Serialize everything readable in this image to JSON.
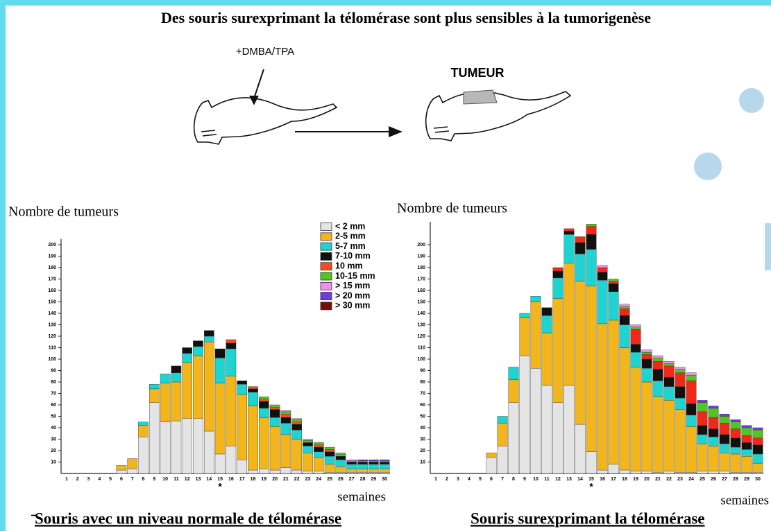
{
  "slide": {
    "title": "Des souris surexprimant la télomérase sont plus sensibles à la tumorigenèse",
    "treatment": "+DMBA/TPA",
    "tumor": "TUMEUR"
  },
  "chart_data": [
    {
      "type": "stacked_bar",
      "y_label": "Nombre de tumeurs",
      "x_label": "semaines",
      "caption": "Souris avec un niveau normale de télomérase",
      "annotation": {
        "text": "*",
        "category": "15"
      },
      "categories": [
        "1",
        "2",
        "3",
        "4",
        "5",
        "6",
        "7",
        "8",
        "9",
        "10",
        "11",
        "12",
        "13",
        "14",
        "15",
        "16",
        "17",
        "18",
        "19",
        "20",
        "21",
        "22",
        "23",
        "24",
        "25",
        "26",
        "27",
        "28",
        "29",
        "30"
      ],
      "ylim": [
        0,
        205
      ],
      "yticks": [
        10,
        20,
        30,
        40,
        50,
        60,
        70,
        80,
        90,
        100,
        110,
        120,
        130,
        140,
        150,
        160,
        170,
        180,
        190,
        200
      ],
      "legend": "top-right",
      "series": [
        {
          "name": "< 2 mm",
          "color": "#e4e4e4",
          "values": [
            0,
            0,
            0,
            0,
            0,
            3,
            4,
            32,
            62,
            45,
            46,
            48,
            48,
            37,
            17,
            24,
            12,
            3,
            4,
            3,
            5,
            3,
            2,
            2,
            1,
            1,
            1,
            1,
            1,
            1
          ]
        },
        {
          "name": "2-5 mm",
          "color": "#f2b51c",
          "values": [
            0,
            0,
            0,
            0,
            0,
            4,
            9,
            10,
            12,
            34,
            34,
            49,
            55,
            78,
            62,
            61,
            57,
            56,
            45,
            38,
            29,
            27,
            16,
            12,
            7,
            5,
            3,
            3,
            3,
            3
          ]
        },
        {
          "name": "5-7 mm",
          "color": "#1ed3d0",
          "values": [
            0,
            0,
            0,
            0,
            0,
            0,
            0,
            3,
            4,
            8,
            8,
            8,
            8,
            5,
            22,
            24,
            9,
            12,
            8,
            8,
            10,
            8,
            6,
            5,
            7,
            6,
            4,
            4,
            4,
            4
          ]
        },
        {
          "name": "7-10 mm",
          "color": "#111111",
          "values": [
            0,
            0,
            0,
            0,
            0,
            0,
            0,
            0,
            0,
            0,
            6,
            5,
            5,
            5,
            8,
            5,
            3,
            3,
            6,
            7,
            5,
            5,
            3,
            4,
            4,
            3,
            2,
            2,
            2,
            2
          ]
        },
        {
          "name": "10 mm",
          "color": "#f0501a",
          "values": [
            0,
            0,
            0,
            0,
            0,
            0,
            0,
            0,
            0,
            0,
            0,
            0,
            0,
            0,
            0,
            3,
            0,
            2,
            2,
            2,
            3,
            2,
            0,
            2,
            2,
            0,
            0,
            0,
            0,
            0
          ]
        },
        {
          "name": "10-15 mm",
          "color": "#52c424",
          "values": [
            0,
            0,
            0,
            0,
            0,
            0,
            0,
            0,
            0,
            0,
            0,
            0,
            0,
            0,
            0,
            0,
            0,
            0,
            2,
            2,
            2,
            2,
            2,
            2,
            2,
            2,
            1,
            1,
            1,
            1
          ]
        },
        {
          "name": "> 15 mm",
          "color": "#f090ee",
          "values": [
            0,
            0,
            0,
            0,
            0,
            0,
            0,
            0,
            0,
            0,
            0,
            0,
            0,
            0,
            0,
            0,
            0,
            0,
            0,
            0,
            1,
            1,
            1,
            0,
            0,
            1,
            1,
            0,
            0,
            0
          ]
        },
        {
          "name": "> 20 mm",
          "color": "#6a3ee0",
          "values": [
            0,
            0,
            0,
            0,
            0,
            0,
            0,
            0,
            0,
            0,
            0,
            0,
            0,
            0,
            0,
            0,
            0,
            0,
            0,
            0,
            0,
            0,
            0,
            0,
            0,
            0,
            0,
            1,
            1,
            1
          ]
        },
        {
          "name": "> 30 mm",
          "color": "#7a0c0c",
          "values": [
            0,
            0,
            0,
            0,
            0,
            0,
            0,
            0,
            0,
            0,
            0,
            0,
            0,
            0,
            0,
            0,
            0,
            0,
            0,
            0,
            0,
            0,
            0,
            0,
            0,
            0,
            0,
            0,
            0,
            0
          ]
        }
      ]
    },
    {
      "type": "stacked_bar",
      "y_label": "Nombre de tumeurs",
      "x_label": "semaines",
      "caption": "Souris surexprimant la télomérase",
      "annotation": {
        "text": "*",
        "category": "15"
      },
      "categories": [
        "1",
        "2",
        "3",
        "4",
        "5",
        "6",
        "7",
        "8",
        "9",
        "10",
        "11",
        "12",
        "13",
        "14",
        "15",
        "16",
        "17",
        "18",
        "19",
        "20",
        "21",
        "22",
        "23",
        "24",
        "25",
        "26",
        "27",
        "28",
        "29",
        "30"
      ],
      "ylim": [
        0,
        220
      ],
      "yticks": [
        10,
        20,
        30,
        40,
        50,
        60,
        70,
        80,
        90,
        100,
        110,
        120,
        130,
        140,
        150,
        160,
        170,
        180,
        190,
        200
      ],
      "series": [
        {
          "color": "#e4e4e4",
          "values": [
            0,
            0,
            0,
            0,
            0,
            14,
            24,
            62,
            103,
            92,
            77,
            62,
            77,
            43,
            19,
            3,
            8,
            3,
            2,
            2,
            1,
            2,
            1,
            1,
            2,
            2,
            2,
            1,
            1,
            1
          ]
        },
        {
          "color": "#f2b51c",
          "values": [
            0,
            0,
            0,
            0,
            0,
            4,
            20,
            20,
            33,
            58,
            46,
            91,
            107,
            125,
            145,
            128,
            126,
            107,
            91,
            78,
            66,
            62,
            55,
            40,
            24,
            22,
            16,
            16,
            14,
            8
          ]
        },
        {
          "color": "#1ed3d0",
          "values": [
            0,
            0,
            0,
            0,
            0,
            0,
            6,
            11,
            4,
            5,
            15,
            18,
            25,
            24,
            32,
            38,
            25,
            20,
            13,
            12,
            14,
            12,
            10,
            10,
            8,
            8,
            8,
            6,
            6,
            8
          ]
        },
        {
          "color": "#111111",
          "values": [
            0,
            0,
            0,
            0,
            0,
            0,
            0,
            0,
            0,
            0,
            7,
            6,
            3,
            10,
            13,
            7,
            7,
            8,
            7,
            8,
            10,
            8,
            10,
            10,
            8,
            7,
            8,
            8,
            6,
            8
          ]
        },
        {
          "color": "#f0281a",
          "values": [
            0,
            0,
            0,
            0,
            0,
            0,
            0,
            0,
            0,
            0,
            0,
            3,
            2,
            5,
            7,
            4,
            2,
            6,
            13,
            4,
            7,
            10,
            12,
            20,
            12,
            10,
            10,
            8,
            6,
            6
          ]
        },
        {
          "color": "#52c424",
          "values": [
            0,
            0,
            0,
            0,
            0,
            0,
            0,
            0,
            0,
            0,
            0,
            0,
            0,
            0,
            2,
            0,
            2,
            2,
            2,
            2,
            3,
            2,
            3,
            5,
            8,
            8,
            6,
            6,
            7,
            7
          ]
        },
        {
          "color": "#f090ee",
          "values": [
            0,
            0,
            0,
            0,
            0,
            0,
            0,
            0,
            0,
            0,
            0,
            0,
            0,
            0,
            0,
            2,
            0,
            2,
            2,
            2,
            2,
            2,
            2,
            2,
            0,
            0,
            0,
            0,
            0,
            0
          ]
        },
        {
          "color": "#6a3ee0",
          "values": [
            0,
            0,
            0,
            0,
            0,
            0,
            0,
            0,
            0,
            0,
            0,
            0,
            0,
            0,
            0,
            0,
            0,
            0,
            0,
            0,
            0,
            0,
            0,
            0,
            2,
            2,
            2,
            2,
            2,
            2
          ]
        },
        {
          "color": "#7a0c0c",
          "values": [
            0,
            0,
            0,
            0,
            0,
            0,
            0,
            0,
            0,
            0,
            0,
            0,
            0,
            0,
            0,
            0,
            0,
            0,
            0,
            0,
            0,
            0,
            0,
            0,
            0,
            0,
            0,
            0,
            0,
            0
          ]
        }
      ]
    }
  ]
}
